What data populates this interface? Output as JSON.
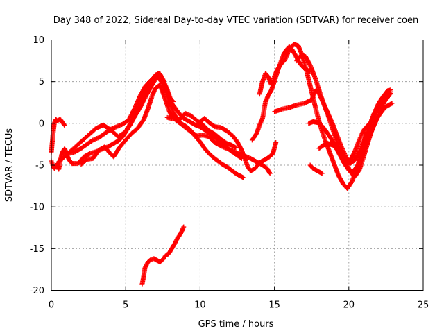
{
  "chart_data": {
    "type": "scatter",
    "title": "Day 348 of 2022, Sidereal Day-to-day VTEC variation (SDTVAR) for receiver coen",
    "xlabel": "GPS time / hours",
    "ylabel": "SDTVAR / TECUs",
    "xlim": [
      0,
      25
    ],
    "ylim": [
      -20,
      10
    ],
    "xticks": [
      0,
      5,
      10,
      15,
      20,
      25
    ],
    "yticks": [
      -20,
      -15,
      -10,
      -5,
      0,
      5,
      10
    ],
    "grid": true,
    "marker": "plus",
    "series_color": "#ff0000",
    "series": [
      {
        "name": "s1",
        "x": [
          0.0,
          0.1,
          0.2,
          0.3,
          0.4,
          0.6,
          0.8,
          0.9
        ],
        "y": [
          -3.5,
          -1.5,
          0.0,
          0.5,
          0.3,
          0.5,
          0.0,
          -0.3
        ]
      },
      {
        "name": "s2",
        "x": [
          0.0,
          0.1,
          0.2,
          0.3,
          0.4,
          0.5,
          0.6,
          0.7,
          0.8,
          0.9,
          1.0,
          1.2,
          1.4
        ],
        "y": [
          -4.5,
          -5.0,
          -5.4,
          -5.2,
          -4.8,
          -5.5,
          -4.5,
          -3.7,
          -3.3,
          -3.0,
          -3.6,
          -4.4,
          -4.8
        ]
      },
      {
        "name": "s3",
        "x": [
          1.4,
          1.8,
          2.2,
          2.6,
          3.0,
          3.4,
          3.8,
          4.2,
          4.5,
          4.8,
          5.0,
          5.3,
          5.6,
          6.0,
          6.4,
          6.8,
          7.1,
          7.4,
          7.7,
          8.0,
          8.3,
          8.7,
          9.0,
          9.3,
          9.6,
          10.0,
          10.3,
          10.6,
          10.9,
          11.2,
          11.5,
          11.8,
          12.1,
          12.4,
          12.7,
          12.9
        ],
        "y": [
          -4.8,
          -4.8,
          -4.0,
          -3.6,
          -3.4,
          -3.1,
          -2.8,
          -2.4,
          -2.1,
          -1.6,
          -1.0,
          -0.2,
          0.8,
          2.0,
          3.4,
          4.7,
          5.6,
          5.0,
          3.8,
          2.2,
          1.0,
          0.0,
          -0.3,
          -0.7,
          -1.4,
          -2.2,
          -3.0,
          -3.6,
          -4.1,
          -4.5,
          -4.9,
          -5.2,
          -5.6,
          -6.0,
          -6.3,
          -6.5
        ]
      },
      {
        "name": "s4",
        "x": [
          0.5,
          1.0,
          1.5,
          2.0,
          2.5,
          3.0,
          3.5,
          4.0,
          4.5,
          5.0,
          5.5,
          6.0,
          6.5,
          7.0,
          7.3,
          7.5,
          7.8,
          8.1,
          8.5,
          8.9,
          9.3,
          9.7,
          10.0,
          10.4,
          10.8,
          11.2,
          11.6,
          12.0,
          12.4,
          12.8
        ],
        "y": [
          -4.6,
          -3.8,
          -3.0,
          -2.2,
          -1.4,
          -0.6,
          -0.2,
          -0.8,
          -1.6,
          -1.0,
          0.6,
          2.5,
          4.4,
          5.8,
          6.0,
          5.2,
          3.8,
          2.4,
          1.4,
          0.6,
          0.2,
          -0.2,
          -0.4,
          -0.9,
          -1.4,
          -2.0,
          -2.6,
          -3.2,
          -3.7,
          -4.2
        ]
      },
      {
        "name": "s5",
        "x": [
          1.2,
          1.6,
          2.0,
          2.4,
          2.8,
          3.2,
          3.6,
          4.0,
          4.4,
          4.8,
          5.2,
          5.6,
          6.0,
          6.3,
          6.6,
          6.9,
          7.2,
          7.5,
          7.8,
          8.0,
          8.2
        ],
        "y": [
          -3.6,
          -3.4,
          -3.0,
          -2.5,
          -2.0,
          -1.7,
          -1.2,
          -0.7,
          -0.4,
          -0.1,
          0.4,
          1.8,
          3.4,
          4.4,
          5.0,
          5.5,
          6.0,
          5.3,
          4.0,
          3.0,
          2.6
        ]
      },
      {
        "name": "s6",
        "x": [
          2.0,
          2.4,
          2.8,
          3.2,
          3.6,
          3.9,
          4.2,
          4.5,
          4.8,
          5.1,
          5.4,
          5.8,
          6.2,
          6.5,
          6.8,
          7.0,
          7.3,
          7.6,
          7.9,
          8.1,
          8.4,
          8.7,
          9.0,
          9.4,
          9.8,
          10.2,
          10.6,
          11.0,
          11.4,
          11.8,
          12.1,
          12.4
        ],
        "y": [
          -4.9,
          -4.3,
          -4.2,
          -3.2,
          -2.8,
          -3.5,
          -4.0,
          -3.1,
          -2.4,
          -1.8,
          -1.2,
          -0.6,
          0.4,
          1.8,
          3.4,
          4.2,
          4.6,
          3.2,
          1.6,
          0.8,
          0.4,
          0.6,
          1.2,
          0.9,
          0.3,
          -0.2,
          -0.9,
          -1.3,
          -1.9,
          -2.4,
          -2.6,
          -2.9
        ]
      },
      {
        "name": "s7",
        "x": [
          7.8,
          8.3,
          8.8,
          9.3,
          9.8,
          10.2,
          10.6,
          11.0,
          11.4,
          11.8,
          12.2,
          12.6,
          13.0,
          13.4,
          13.8,
          14.2,
          14.5,
          14.7
        ],
        "y": [
          0.7,
          0.5,
          -0.2,
          -0.9,
          -1.5,
          -1.4,
          -1.6,
          -2.3,
          -2.7,
          -3.0,
          -3.3,
          -3.6,
          -3.9,
          -4.2,
          -4.6,
          -5.0,
          -5.4,
          -6.0
        ]
      },
      {
        "name": "s8",
        "x": [
          10.0,
          10.3,
          10.6,
          11.0,
          11.4,
          11.8,
          12.2,
          12.5,
          12.8,
          13.0,
          13.2,
          13.4,
          13.7,
          14.0,
          14.3,
          14.6,
          14.9,
          15.1
        ],
        "y": [
          0.2,
          0.6,
          0.1,
          -0.4,
          -0.5,
          -0.9,
          -1.5,
          -2.2,
          -3.2,
          -4.2,
          -5.2,
          -5.7,
          -5.4,
          -4.7,
          -4.4,
          -4.1,
          -3.6,
          -2.3
        ]
      },
      {
        "name": "s9",
        "x": [
          13.5,
          13.8,
          14.0,
          14.2,
          14.4,
          14.6,
          14.8,
          15.0,
          15.2,
          15.4,
          15.6,
          15.8,
          16.0,
          16.2,
          16.4,
          16.6,
          16.8,
          17.0,
          17.2,
          17.4
        ],
        "y": [
          -2.0,
          -1.2,
          -0.2,
          0.6,
          2.6,
          3.4,
          4.0,
          5.0,
          6.2,
          7.2,
          8.2,
          8.8,
          9.2,
          8.8,
          8.2,
          7.5,
          7.0,
          6.6,
          6.4,
          6.2
        ]
      },
      {
        "name": "s10",
        "x": [
          14.0,
          14.2,
          14.4,
          14.6,
          14.8,
          15.0,
          15.2,
          15.4,
          15.7,
          16.0,
          16.3,
          16.6,
          16.9,
          17.2,
          17.5,
          17.8,
          18.1,
          18.4,
          18.7,
          19.0,
          19.3,
          19.6,
          19.9,
          20.2,
          20.5,
          20.8,
          21.1,
          21.4,
          21.7,
          22.0,
          22.3,
          22.6,
          22.8
        ],
        "y": [
          3.5,
          5.0,
          6.0,
          5.5,
          4.6,
          5.6,
          6.5,
          7.0,
          7.6,
          8.8,
          9.5,
          9.3,
          8.0,
          6.0,
          3.8,
          1.6,
          -0.4,
          -2.0,
          -3.4,
          -4.8,
          -6.2,
          -7.2,
          -7.8,
          -7.0,
          -5.6,
          -3.8,
          -1.8,
          -0.2,
          1.2,
          2.4,
          3.2,
          3.9,
          4.0
        ]
      },
      {
        "name": "s11",
        "x": [
          15.0,
          15.5,
          16.0,
          16.5,
          17.0,
          17.5,
          17.8,
          18.0,
          18.3,
          18.6,
          18.9,
          19.2,
          19.5,
          19.8,
          20.1,
          20.4,
          20.7,
          21.0,
          21.3,
          21.6,
          21.9,
          22.2,
          22.5,
          22.8
        ],
        "y": [
          1.4,
          1.7,
          1.9,
          2.2,
          2.4,
          2.8,
          4.0,
          3.6,
          2.4,
          1.2,
          0.0,
          -1.4,
          -2.8,
          -4.0,
          -4.8,
          -4.4,
          -3.4,
          -2.2,
          -0.8,
          0.6,
          1.6,
          2.6,
          3.4,
          3.8
        ]
      },
      {
        "name": "s12",
        "x": [
          16.5,
          16.8,
          17.1,
          17.4,
          17.7,
          18.0,
          18.3,
          18.6,
          18.9,
          19.2,
          19.5,
          19.8,
          20.1,
          20.4,
          20.7,
          21.0,
          21.3,
          21.6
        ],
        "y": [
          7.5,
          8.2,
          8.0,
          7.0,
          5.6,
          4.0,
          2.4,
          1.0,
          -0.6,
          -2.2,
          -3.6,
          -4.8,
          -4.4,
          -3.4,
          -2.0,
          -0.8,
          -0.2,
          0.4
        ]
      },
      {
        "name": "s13",
        "x": [
          18.0,
          18.3,
          18.6,
          18.9,
          19.2,
          19.5,
          19.8,
          20.1,
          20.4,
          20.7,
          21.0,
          21.3,
          21.6,
          21.9,
          22.2,
          22.5,
          22.9
        ],
        "y": [
          -3.0,
          -2.6,
          -2.4,
          -2.6,
          -2.8,
          -3.4,
          -4.6,
          -5.8,
          -6.4,
          -5.6,
          -4.0,
          -2.2,
          -0.6,
          0.6,
          1.4,
          2.0,
          2.4
        ]
      },
      {
        "name": "s14",
        "x": [
          17.3,
          17.6,
          17.9,
          18.2,
          18.5,
          18.8,
          19.1,
          19.4,
          19.7,
          20.0,
          20.3,
          20.6,
          20.9,
          21.2,
          21.5,
          21.8,
          22.1,
          22.4,
          22.8
        ],
        "y": [
          0.0,
          0.2,
          0.1,
          -0.3,
          -1.0,
          -1.8,
          -2.8,
          -3.8,
          -4.8,
          -5.6,
          -5.8,
          -5.0,
          -3.8,
          -2.4,
          -1.0,
          0.2,
          1.4,
          2.6,
          3.6
        ]
      },
      {
        "name": "s15",
        "x": [
          17.4,
          17.6,
          17.8,
          18.0,
          18.2
        ],
        "y": [
          -5.0,
          -5.4,
          -5.6,
          -5.8,
          -6.0
        ]
      },
      {
        "name": "s16",
        "x": [
          6.1,
          6.2,
          6.3,
          6.5,
          6.7,
          6.9,
          7.1,
          7.3,
          7.5,
          7.7,
          7.9,
          8.1,
          8.3,
          8.5,
          8.7,
          8.9
        ],
        "y": [
          -19.3,
          -18.4,
          -17.3,
          -16.6,
          -16.3,
          -16.2,
          -16.4,
          -16.6,
          -16.3,
          -15.8,
          -15.6,
          -15.0,
          -14.4,
          -13.7,
          -13.2,
          -12.4
        ]
      }
    ]
  }
}
